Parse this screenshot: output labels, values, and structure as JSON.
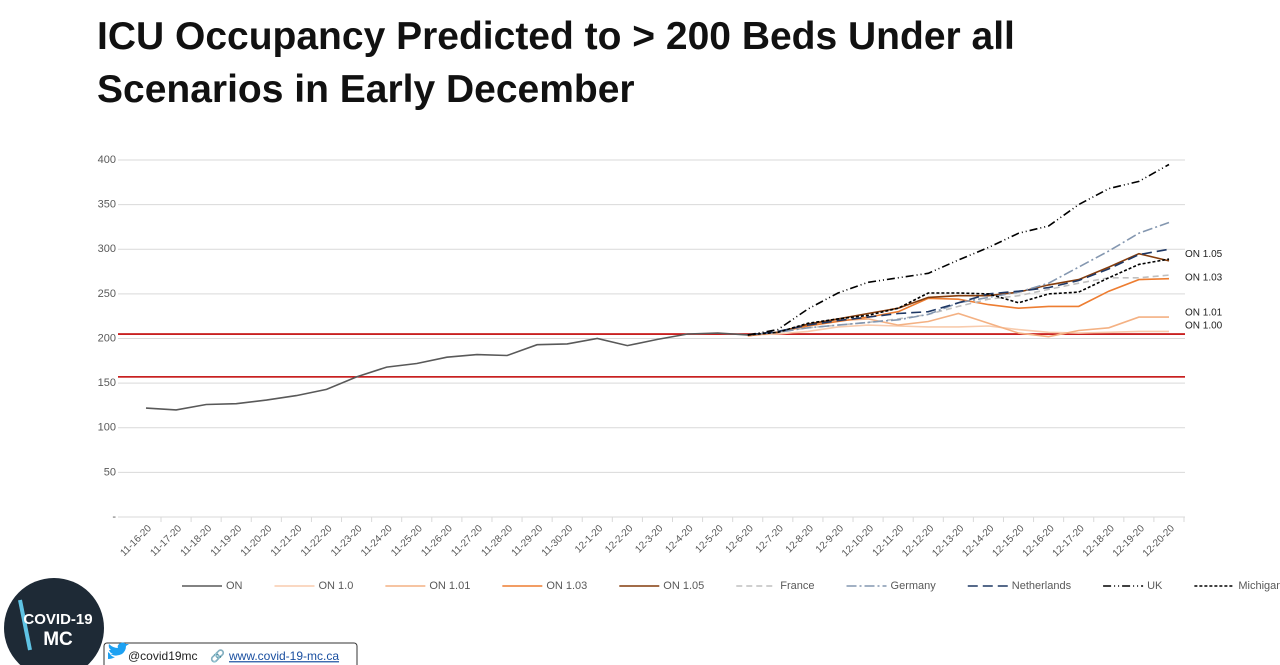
{
  "title_lines": [
    "ICU Occupancy Predicted to > 200 Beds Under all",
    "Scenarios in Early December"
  ],
  "chart_data": {
    "type": "line",
    "categories": [
      "11-16-20",
      "11-17-20",
      "11-18-20",
      "11-19-20",
      "11-20-20",
      "11-21-20",
      "11-22-20",
      "11-23-20",
      "11-24-20",
      "11-25-20",
      "11-26-20",
      "11-27-20",
      "11-28-20",
      "11-29-20",
      "11-30-20",
      "12-1-20",
      "12-2-20",
      "12-3-20",
      "12-4-20",
      "12-5-20",
      "12-6-20",
      "12-7-20",
      "12-8-20",
      "12-9-20",
      "12-10-20",
      "12-11-20",
      "12-12-20",
      "12-13-20",
      "12-14-20",
      "12-15-20",
      "12-16-20",
      "12-17-20",
      "12-18-20",
      "12-19-20",
      "12-20-20"
    ],
    "ylim": [
      0,
      400
    ],
    "yticks": [
      {
        "value": 0,
        "label": "-"
      },
      50,
      100,
      150,
      200,
      250,
      300,
      350,
      400
    ],
    "grid": true,
    "legend": "bottom",
    "reference_lines": [
      {
        "value": 205,
        "color": "#c00000"
      },
      {
        "value": 157,
        "color": "#c00000"
      }
    ],
    "annotations": [
      {
        "text": "ON 1.05",
        "y": 294
      },
      {
        "text": "ON 1.03",
        "y": 268
      },
      {
        "text": "ON 1.01",
        "y": 229
      },
      {
        "text": "ON 1.00",
        "y": 214
      }
    ],
    "series": [
      {
        "name": "ON",
        "color": "#595959",
        "dash": "",
        "values": [
          122,
          120,
          126,
          127,
          131,
          136,
          143,
          157,
          168,
          172,
          179,
          182,
          181,
          193,
          194,
          200,
          192,
          199,
          205,
          206,
          204,
          null,
          null,
          null,
          null,
          null,
          null,
          null,
          null,
          null,
          null,
          null,
          null,
          null,
          null
        ]
      },
      {
        "name": "ON 1.0",
        "color": "#f8cbad",
        "dash": "",
        "values": [
          null,
          null,
          null,
          null,
          null,
          null,
          null,
          null,
          null,
          null,
          null,
          null,
          null,
          null,
          null,
          null,
          null,
          null,
          null,
          null,
          204,
          205,
          208,
          213,
          215,
          214,
          213,
          213,
          214,
          210,
          207,
          206,
          207,
          208,
          208
        ]
      },
      {
        "name": "ON 1.01",
        "color": "#f4b183",
        "dash": "",
        "values": [
          null,
          null,
          null,
          null,
          null,
          null,
          null,
          null,
          null,
          null,
          null,
          null,
          null,
          null,
          null,
          null,
          null,
          null,
          null,
          null,
          203,
          207,
          215,
          220,
          222,
          215,
          219,
          228,
          217,
          206,
          202,
          209,
          212,
          224,
          224
        ]
      },
      {
        "name": "ON 1.03",
        "color": "#ed7d31",
        "dash": "",
        "values": [
          null,
          null,
          null,
          null,
          null,
          null,
          null,
          null,
          null,
          null,
          null,
          null,
          null,
          null,
          null,
          null,
          null,
          null,
          null,
          null,
          203,
          207,
          214,
          219,
          224,
          230,
          245,
          244,
          238,
          234,
          236,
          236,
          253,
          266,
          267
        ]
      },
      {
        "name": "ON 1.05",
        "color": "#843c0c",
        "dash": "",
        "values": [
          null,
          null,
          null,
          null,
          null,
          null,
          null,
          null,
          null,
          null,
          null,
          null,
          null,
          null,
          null,
          null,
          null,
          null,
          null,
          null,
          204,
          207,
          216,
          222,
          228,
          234,
          246,
          248,
          248,
          252,
          260,
          266,
          280,
          295,
          287
        ]
      },
      {
        "name": "France",
        "color": "#bfbfbf",
        "dash": "6,4",
        "values": [
          null,
          null,
          null,
          null,
          null,
          null,
          null,
          null,
          null,
          null,
          null,
          null,
          null,
          null,
          null,
          null,
          null,
          null,
          null,
          null,
          204,
          207,
          212,
          215,
          218,
          222,
          227,
          236,
          244,
          248,
          255,
          262,
          268,
          268,
          271
        ]
      },
      {
        "name": "Germany",
        "color": "#8497b0",
        "dash": "10,3,2,3",
        "values": [
          null,
          null,
          null,
          null,
          null,
          null,
          null,
          null,
          null,
          null,
          null,
          null,
          null,
          null,
          null,
          null,
          null,
          null,
          null,
          null,
          204,
          207,
          212,
          215,
          218,
          221,
          227,
          240,
          246,
          252,
          262,
          280,
          298,
          318,
          330
        ]
      },
      {
        "name": "Netherlands",
        "color": "#1f3864",
        "dash": "10,5",
        "values": [
          null,
          null,
          null,
          null,
          null,
          null,
          null,
          null,
          null,
          null,
          null,
          null,
          null,
          null,
          null,
          null,
          null,
          null,
          null,
          null,
          204,
          208,
          215,
          220,
          224,
          228,
          230,
          240,
          250,
          253,
          257,
          265,
          278,
          294,
          300
        ]
      },
      {
        "name": "UK",
        "color": "#000000",
        "dash": "8,3,1,3,1,3",
        "values": [
          null,
          null,
          null,
          null,
          null,
          null,
          null,
          null,
          null,
          null,
          null,
          null,
          null,
          null,
          null,
          null,
          null,
          null,
          null,
          null,
          204,
          210,
          233,
          251,
          263,
          268,
          273,
          288,
          302,
          318,
          326,
          350,
          368,
          376,
          395
        ]
      },
      {
        "name": "Michigan",
        "color": "#000000",
        "dash": "3,2",
        "values": [
          null,
          null,
          null,
          null,
          null,
          null,
          null,
          null,
          null,
          null,
          null,
          null,
          null,
          null,
          null,
          null,
          null,
          null,
          null,
          null,
          204,
          207,
          217,
          222,
          226,
          234,
          251,
          251,
          250,
          240,
          250,
          252,
          268,
          283,
          289
        ]
      }
    ]
  },
  "footer": {
    "logo_lines": [
      "COVID-19",
      "MC"
    ],
    "handle": "@covid19mc",
    "link": "www.covid-19-mc.ca"
  }
}
